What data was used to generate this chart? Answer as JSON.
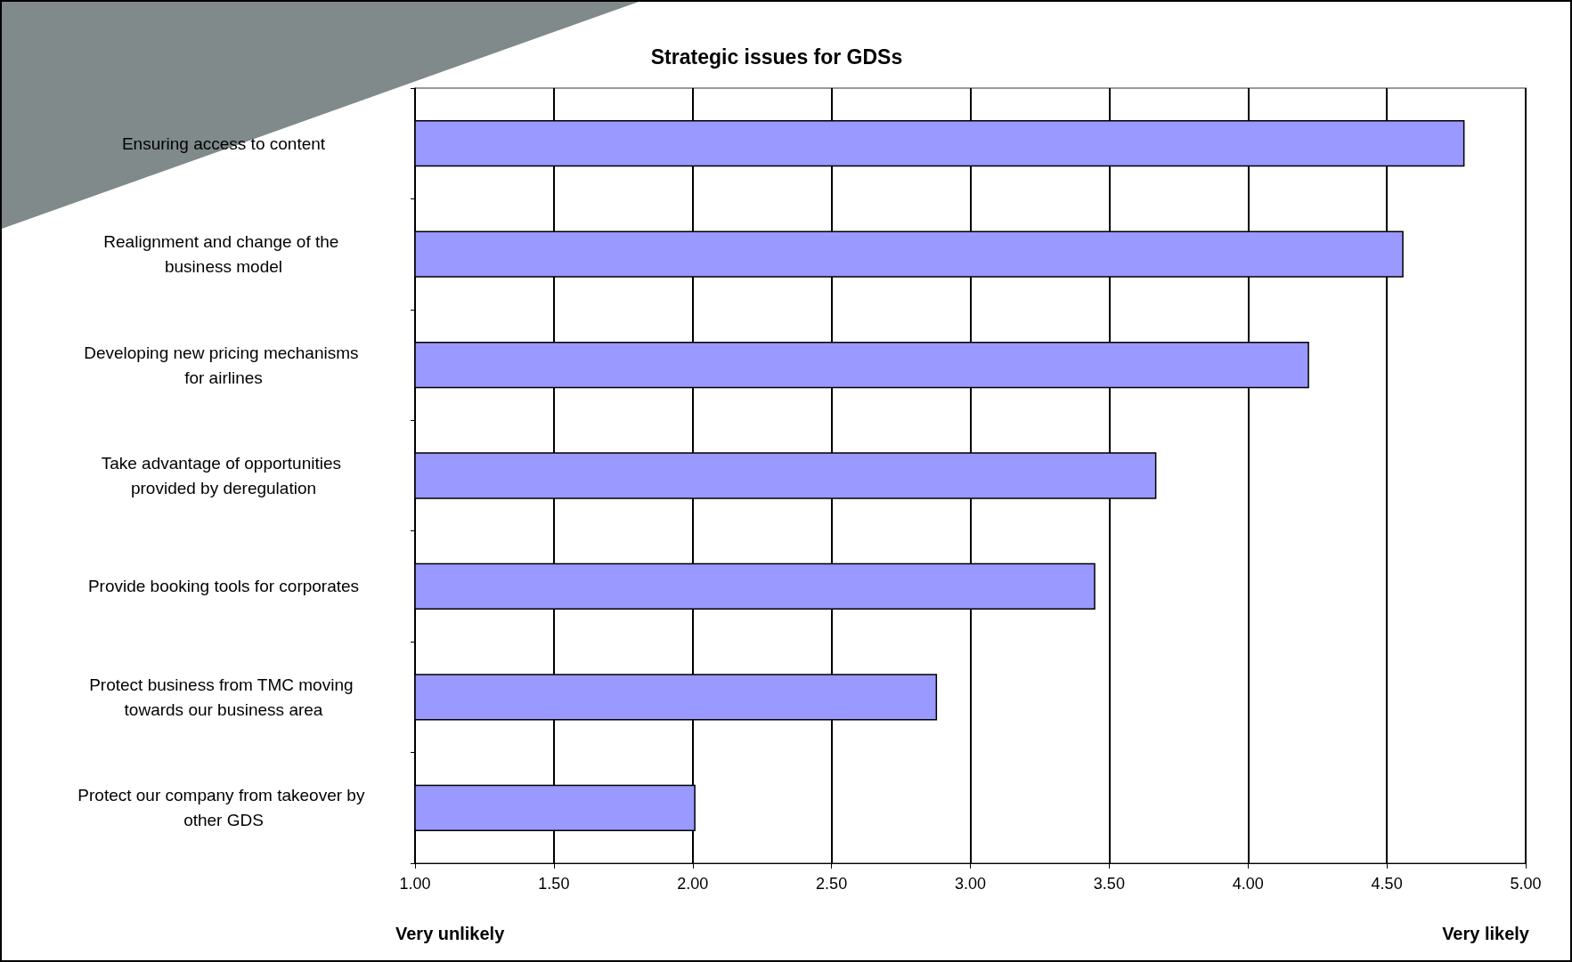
{
  "chart_data": {
    "type": "bar",
    "orientation": "horizontal",
    "title": "Strategic issues for GDSs",
    "categories": [
      "Ensuring access to content",
      "Realignment and change of the business model",
      "Developing new pricing mechanisms for airlines",
      "Take advantage of opportunities provided by deregulation",
      "Provide booking tools for corporates",
      "Protect business from TMC moving towards our business area",
      "Protect our company from takeover by other GDS"
    ],
    "values": [
      4.78,
      4.56,
      4.22,
      3.67,
      3.45,
      2.88,
      2.01
    ],
    "color": "#9999ff",
    "xlim": [
      1,
      5
    ],
    "xticks": [
      {
        "value": 1,
        "label": "1.00"
      },
      {
        "value": 1.5,
        "label": "1.50"
      },
      {
        "value": 2,
        "label": "2.00"
      },
      {
        "value": 2.5,
        "label": "2.50"
      },
      {
        "value": 3,
        "label": "3.00"
      },
      {
        "value": 3.5,
        "label": "3.50"
      },
      {
        "value": 4,
        "label": "4.00"
      },
      {
        "value": 4.5,
        "label": "4.50"
      },
      {
        "value": 5,
        "label": "5.00"
      }
    ],
    "grid": "x",
    "annotations": [
      "Very unlikely",
      "Very likely"
    ]
  }
}
